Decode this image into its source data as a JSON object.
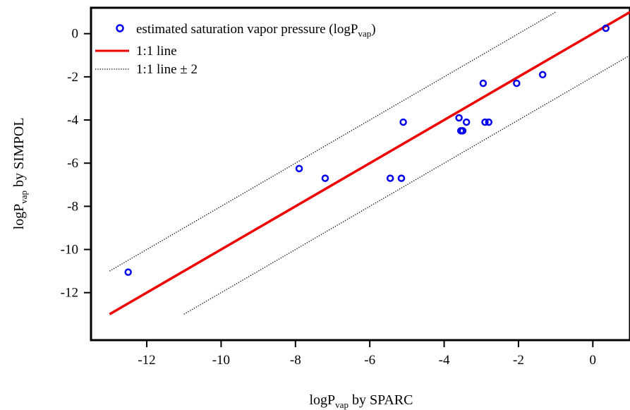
{
  "chart_data": {
    "type": "scatter",
    "x_label_main": "logP",
    "x_label_sub": "vap",
    "x_label_rest": " by SPARC",
    "y_label_main": "logP",
    "y_label_sub": "vap",
    "y_label_rest": " by SIMPOL",
    "xlim": [
      -13.5,
      1.0
    ],
    "ylim": [
      -14.2,
      1.2
    ],
    "x_ticks": [
      -12,
      -10,
      -8,
      -6,
      -4,
      -2,
      0
    ],
    "y_ticks": [
      0,
      -2,
      -4,
      -6,
      -8,
      -10,
      -12
    ],
    "x_tick_labels": [
      "-12",
      "-10",
      "-8",
      "-6",
      "-4",
      "-2",
      "0"
    ],
    "y_tick_labels": [
      "0",
      "-2",
      "-4",
      "-6",
      "-8",
      "-10",
      "-12"
    ],
    "grid": false,
    "legend_position": "top-left",
    "legend": {
      "points_label_main": "estimated saturation vapor pressure (logP",
      "points_label_sub": "vap",
      "points_label_end": ")",
      "line_label": "1:1 line",
      "band_label": "1:1 line ± 2"
    },
    "series": [
      {
        "kind": "points",
        "color": "#0000ee",
        "x": [
          -12.5,
          -7.9,
          -7.2,
          -5.45,
          -5.15,
          -5.1,
          -3.6,
          -3.55,
          -3.5,
          -3.4,
          -2.95,
          -2.9,
          -2.8,
          -2.05,
          -1.35,
          0.35
        ],
        "y": [
          -11.05,
          -6.25,
          -6.7,
          -6.7,
          -6.7,
          -4.1,
          -3.9,
          -4.5,
          -4.5,
          -4.1,
          -2.3,
          -4.1,
          -4.1,
          -2.3,
          -1.9,
          0.25
        ]
      },
      {
        "kind": "line",
        "color": "#ee0000",
        "x": [
          -13,
          1.0
        ],
        "y": [
          -13,
          1.0
        ]
      },
      {
        "kind": "dotted",
        "color": "#000000",
        "x": [
          -13,
          -1.0
        ],
        "y": [
          -11,
          1.0
        ]
      },
      {
        "kind": "dotted",
        "color": "#000000",
        "x": [
          -11,
          1.0
        ],
        "y": [
          -13,
          -1.0
        ]
      }
    ]
  }
}
